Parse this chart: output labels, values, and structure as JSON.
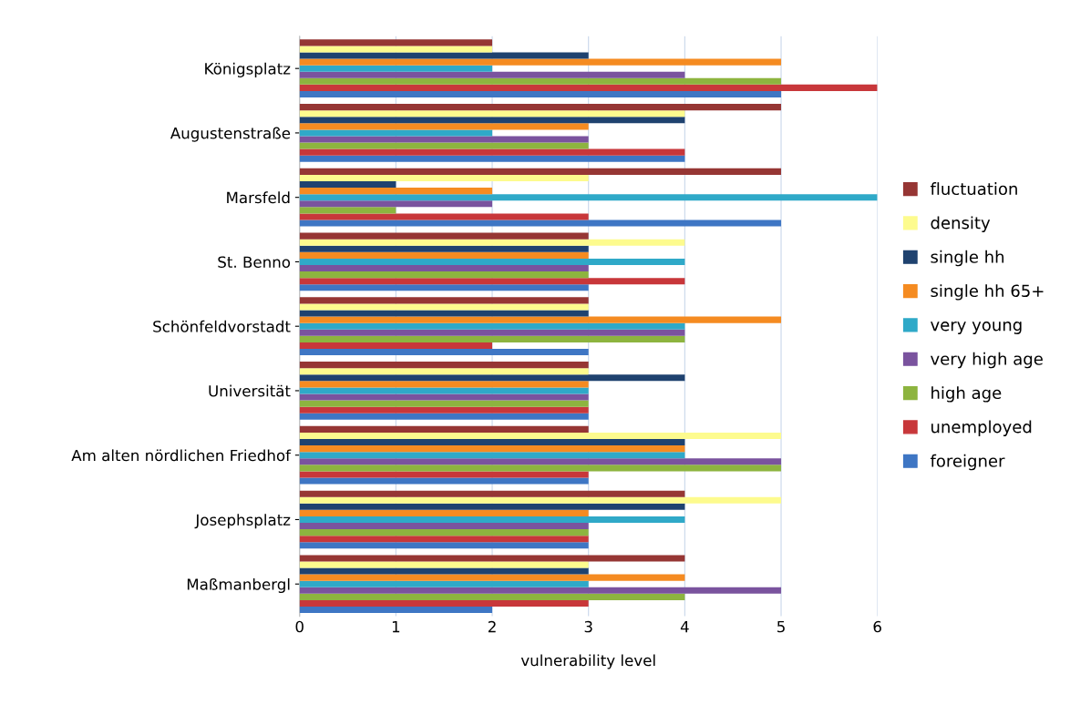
{
  "chart_data": {
    "type": "bar",
    "orientation": "horizontal",
    "xlabel": "vulnerability level",
    "categories": [
      "Königsplatz",
      "Augustenstraße",
      "Marsfeld",
      "St. Benno",
      "Schönfeldvorstadt",
      "Universität",
      "Am alten nördlichen Friedhof",
      "Josephsplatz",
      "Maßmanbergl"
    ],
    "series": [
      {
        "name": "foreigner",
        "color": "#3e76c4",
        "values": [
          5,
          4,
          5,
          3,
          3,
          3,
          3,
          3,
          2
        ]
      },
      {
        "name": "unemployed",
        "color": "#c8373a",
        "values": [
          6,
          4,
          3,
          4,
          2,
          3,
          3,
          3,
          3
        ]
      },
      {
        "name": "high age",
        "color": "#8db43f",
        "values": [
          5,
          3,
          1,
          3,
          4,
          3,
          5,
          3,
          4
        ]
      },
      {
        "name": "very high age",
        "color": "#7a539e",
        "values": [
          4,
          3,
          2,
          3,
          4,
          3,
          5,
          3,
          5
        ]
      },
      {
        "name": "very young",
        "color": "#2fa9c8",
        "values": [
          2,
          2,
          6,
          4,
          4,
          3,
          4,
          4,
          3
        ]
      },
      {
        "name": "single hh 65+",
        "color": "#f58b21",
        "values": [
          5,
          3,
          2,
          3,
          5,
          3,
          4,
          3,
          4
        ]
      },
      {
        "name": "single hh",
        "color": "#1f426f",
        "values": [
          3,
          4,
          1,
          3,
          3,
          4,
          4,
          4,
          3
        ]
      },
      {
        "name": "density",
        "color": "#fdfb8e",
        "values": [
          2,
          4,
          3,
          4,
          3,
          3,
          5,
          5,
          3
        ]
      },
      {
        "name": "fluctuation",
        "color": "#963634",
        "values": [
          2,
          5,
          5,
          3,
          3,
          3,
          3,
          4,
          4
        ]
      }
    ],
    "xlim": [
      0,
      6
    ],
    "xticks": [
      0,
      1,
      2,
      3,
      4,
      5,
      6
    ],
    "grid": "x",
    "legend": "right"
  }
}
